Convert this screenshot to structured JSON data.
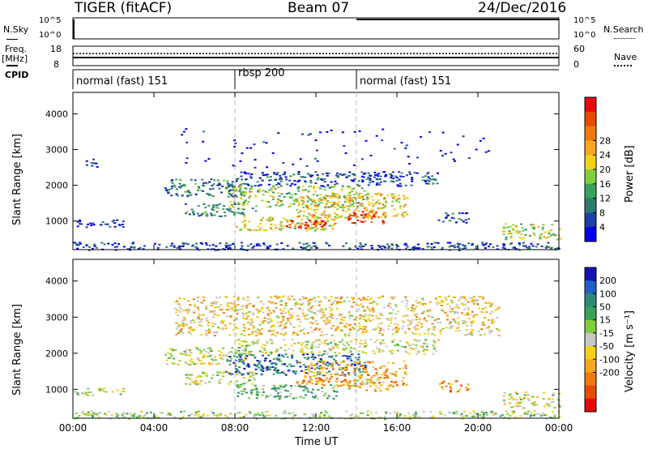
{
  "header": {
    "radar": "TIGER (fitACF)",
    "beam": "Beam 07",
    "date": "24/Dec/2016"
  },
  "top_panels": {
    "nsky_label": "N.Sky",
    "nsky_ticks": [
      "10^5",
      "10^0"
    ],
    "nsearch_label": "N.Search",
    "nsearch_ticks": [
      "10^5",
      "10^0"
    ],
    "freq_label": "Freq.",
    "freq_unit": "[MHz]",
    "freq_ticks": [
      "18",
      "8"
    ],
    "nave_label": "Nave",
    "nave_ticks": [
      "60",
      "0"
    ],
    "cpid_label": "CPID",
    "cpid_segments": [
      {
        "label": "normal (fast) 151",
        "start_h": 0,
        "end_h": 8
      },
      {
        "label": "rbsp 200",
        "start_h": 8,
        "end_h": 14
      },
      {
        "label": "normal (fast) 151",
        "start_h": 14,
        "end_h": 24
      }
    ]
  },
  "chart_data": [
    {
      "type": "heatmap",
      "name": "power",
      "ylabel": "Slant Range [km]",
      "yticks": [
        1000,
        2000,
        3000,
        4000
      ],
      "ylim": [
        200,
        4600
      ],
      "xlim": [
        0,
        24
      ],
      "colorbar_label": "Power [dB]",
      "colorbar_ticks": [
        4,
        8,
        12,
        16,
        20,
        24,
        28
      ],
      "colorbar_colors": [
        "#0000ee",
        "#1d3fa8",
        "#2f7a6e",
        "#39a35a",
        "#7fd040",
        "#f2d31a",
        "#f5a820",
        "#f07a10",
        "#e84a00",
        "#e80a0a"
      ],
      "regions": [
        {
          "x0": 0,
          "x1": 24,
          "r0": 200,
          "r1": 420,
          "level": 0.15
        },
        {
          "x0": 0,
          "x1": 2.5,
          "r0": 850,
          "r1": 1050,
          "level": 0.1
        },
        {
          "x0": 0.6,
          "x1": 1.2,
          "r0": 2500,
          "r1": 2750,
          "level": 0.1
        },
        {
          "x0": 4.5,
          "x1": 8.5,
          "r0": 1700,
          "r1": 2200,
          "level": 0.25
        },
        {
          "x0": 5.5,
          "x1": 9,
          "r0": 1150,
          "r1": 1500,
          "level": 0.3
        },
        {
          "x0": 7.5,
          "x1": 14.5,
          "r0": 1400,
          "r1": 2000,
          "level": 0.45
        },
        {
          "x0": 8,
          "x1": 13,
          "r0": 750,
          "r1": 1150,
          "level": 0.55
        },
        {
          "x0": 11,
          "x1": 16.5,
          "r0": 1100,
          "r1": 1800,
          "level": 0.6
        },
        {
          "x0": 13.5,
          "x1": 15.5,
          "r0": 950,
          "r1": 1300,
          "level": 0.85
        },
        {
          "x0": 10.5,
          "x1": 12.5,
          "r0": 800,
          "r1": 1050,
          "level": 0.95
        },
        {
          "x0": 8,
          "x1": 18,
          "r0": 2000,
          "r1": 2400,
          "level": 0.15
        },
        {
          "x0": 18,
          "x1": 19.5,
          "r0": 950,
          "r1": 1250,
          "level": 0.15
        },
        {
          "x0": 21.2,
          "x1": 24,
          "r0": 500,
          "r1": 950,
          "level": 0.5
        },
        {
          "x0": 5,
          "x1": 21,
          "r0": 2500,
          "r1": 3600,
          "level": 0.05
        }
      ]
    },
    {
      "type": "heatmap",
      "name": "velocity",
      "ylabel": "Slant Range [km]",
      "yticks": [
        1000,
        2000,
        3000,
        4000
      ],
      "ylim": [
        200,
        4600
      ],
      "xlim": [
        0,
        24
      ],
      "colorbar_label": "Velocity [m s⁻¹]",
      "colorbar_ticks": [
        200,
        100,
        50,
        15,
        -15,
        -50,
        -100,
        -200
      ],
      "colorbar_colors": [
        "#1414b4",
        "#2060c8",
        "#2e8a74",
        "#39a35a",
        "#7ccf3e",
        "#c8c8c8",
        "#f2d21a",
        "#f3a820",
        "#f07a10",
        "#e84a00",
        "#e80a0a"
      ],
      "regions": [
        {
          "x0": 0,
          "x1": 24,
          "r0": 200,
          "r1": 420,
          "level": 0.45
        },
        {
          "x0": 0,
          "x1": 2.5,
          "r0": 850,
          "r1": 1050,
          "level": 0.5
        },
        {
          "x0": 4.5,
          "x1": 8.5,
          "r0": 1700,
          "r1": 2200,
          "level": 0.5
        },
        {
          "x0": 5.5,
          "x1": 9,
          "r0": 1150,
          "r1": 1500,
          "level": 0.5
        },
        {
          "x0": 7.5,
          "x1": 14.5,
          "r0": 1400,
          "r1": 2000,
          "level": 0.2
        },
        {
          "x0": 8,
          "x1": 13,
          "r0": 750,
          "r1": 1150,
          "level": 0.35
        },
        {
          "x0": 11,
          "x1": 16.5,
          "r0": 1100,
          "r1": 1800,
          "level": 0.7
        },
        {
          "x0": 13.5,
          "x1": 15.5,
          "r0": 950,
          "r1": 1300,
          "level": 0.6
        },
        {
          "x0": 8,
          "x1": 18,
          "r0": 2000,
          "r1": 2400,
          "level": 0.5
        },
        {
          "x0": 18,
          "x1": 19.5,
          "r0": 950,
          "r1": 1250,
          "level": 0.75
        },
        {
          "x0": 21.2,
          "x1": 24,
          "r0": 500,
          "r1": 950,
          "level": 0.5
        },
        {
          "x0": 5,
          "x1": 21,
          "r0": 2500,
          "r1": 3600,
          "level": 0.6
        }
      ]
    }
  ],
  "x_axis": {
    "ticks": [
      "00:00",
      "04:00",
      "08:00",
      "12:00",
      "16:00",
      "20:00",
      "00:00"
    ],
    "label": "Time UT"
  }
}
